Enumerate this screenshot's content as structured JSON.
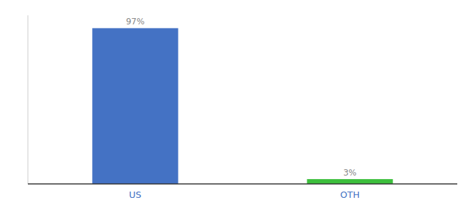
{
  "chart_data": {
    "type": "bar",
    "categories": [
      "US",
      "OTH"
    ],
    "values": [
      97,
      3
    ],
    "value_labels": [
      "97%",
      "3%"
    ],
    "colors": [
      "#4472C4",
      "#3DBF3D"
    ],
    "ylim": [
      0,
      105
    ],
    "data_labels": true,
    "tick_labels": "x",
    "grid": false
  }
}
